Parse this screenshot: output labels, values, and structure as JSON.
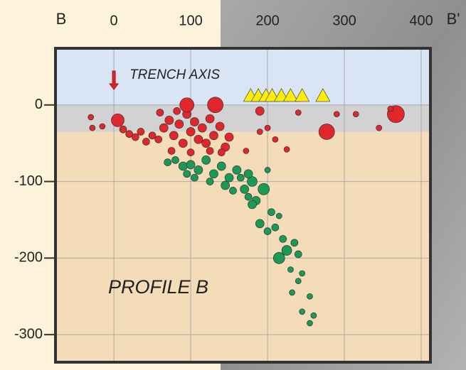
{
  "chart_data": {
    "type": "scatter",
    "start_label": "B",
    "end_label": "B'",
    "annotations": [
      {
        "text": "TRENCH AXIS",
        "x": 0
      },
      {
        "text": "PROFILE B"
      }
    ],
    "xlim": [
      -76,
      412
    ],
    "ylim": [
      -336,
      74
    ],
    "xticks": [
      0,
      100,
      200,
      300,
      400
    ],
    "yticks": [
      0,
      -100,
      -200,
      -300
    ],
    "grid": true,
    "regions": [
      {
        "y": [
          0,
          74
        ],
        "color": "#d9e5f5"
      },
      {
        "y": [
          -35,
          0
        ],
        "color": "#d2d2d2"
      },
      {
        "y": [
          -336,
          -35
        ],
        "color": "#f5dcb8"
      }
    ],
    "series": [
      {
        "marker": "circle",
        "color": "#e1262c",
        "x": [
          -30,
          -28,
          -15,
          5,
          12,
          20,
          28,
          35,
          42,
          50,
          58,
          65,
          72,
          78,
          85,
          90,
          95,
          100,
          105,
          110,
          115,
          120,
          125,
          130,
          138,
          145,
          150,
          75,
          100,
          125,
          140,
          172,
          190,
          200,
          210,
          240,
          95,
          132,
          277,
          367,
          290,
          315,
          345,
          360,
          190,
          225,
          60,
          82
        ],
        "values": [
          -16,
          -30,
          -28,
          -20,
          -32,
          -38,
          -42,
          -35,
          -48,
          -40,
          -45,
          -30,
          -20,
          -40,
          -25,
          -50,
          -12,
          -35,
          -22,
          -45,
          -30,
          -50,
          -18,
          -40,
          -28,
          -55,
          -42,
          -60,
          -62,
          -60,
          -62,
          -60,
          -8,
          -30,
          -45,
          -10,
          0,
          0,
          -35,
          -12,
          -12,
          -12,
          -30,
          -5,
          -35,
          -58,
          -10,
          -8
        ],
        "sizes": [
          4,
          4,
          4,
          9,
          5,
          5,
          5,
          5,
          5,
          5,
          5,
          6,
          6,
          6,
          6,
          6,
          6,
          6,
          6,
          6,
          6,
          6,
          6,
          6,
          6,
          6,
          6,
          5,
          5,
          5,
          5,
          4,
          6,
          4,
          4,
          4,
          10,
          11,
          11,
          12,
          4,
          4,
          4,
          4,
          4,
          4,
          5,
          5
        ]
      },
      {
        "marker": "circle",
        "color": "#1b9a56",
        "x": [
          70,
          80,
          90,
          100,
          110,
          120,
          130,
          140,
          150,
          160,
          105,
          125,
          145,
          170,
          180,
          195,
          185,
          175,
          200,
          180,
          205,
          215,
          210,
          190,
          200,
          220,
          235,
          225,
          215,
          240,
          230,
          245,
          232,
          255,
          245,
          260,
          255,
          165,
          155,
          95,
          240,
          175
        ],
        "values": [
          -75,
          -72,
          -80,
          -78,
          -85,
          -72,
          -90,
          -80,
          -95,
          -85,
          -95,
          -100,
          -105,
          -110,
          -100,
          -110,
          -125,
          -120,
          -85,
          -130,
          -140,
          -145,
          -160,
          -155,
          -165,
          -175,
          -180,
          -190,
          -200,
          -195,
          -215,
          -220,
          -245,
          -250,
          -270,
          -275,
          -285,
          -95,
          -112,
          -90,
          -230,
          -90
        ],
        "sizes": [
          5,
          5,
          6,
          6,
          6,
          6,
          6,
          6,
          6,
          6,
          5,
          5,
          6,
          6,
          7,
          8,
          6,
          5,
          4,
          6,
          5,
          4,
          5,
          6,
          5,
          5,
          5,
          7,
          8,
          5,
          4,
          4,
          4,
          4,
          4,
          4,
          4,
          5,
          5,
          5,
          4,
          6
        ]
      },
      {
        "marker": "triangle",
        "color": "#ffee00",
        "x": [
          178,
          188,
          198,
          206,
          218,
          230,
          245,
          272
        ],
        "values": [
          12,
          12,
          12,
          12,
          12,
          12,
          12,
          12
        ]
      }
    ]
  }
}
